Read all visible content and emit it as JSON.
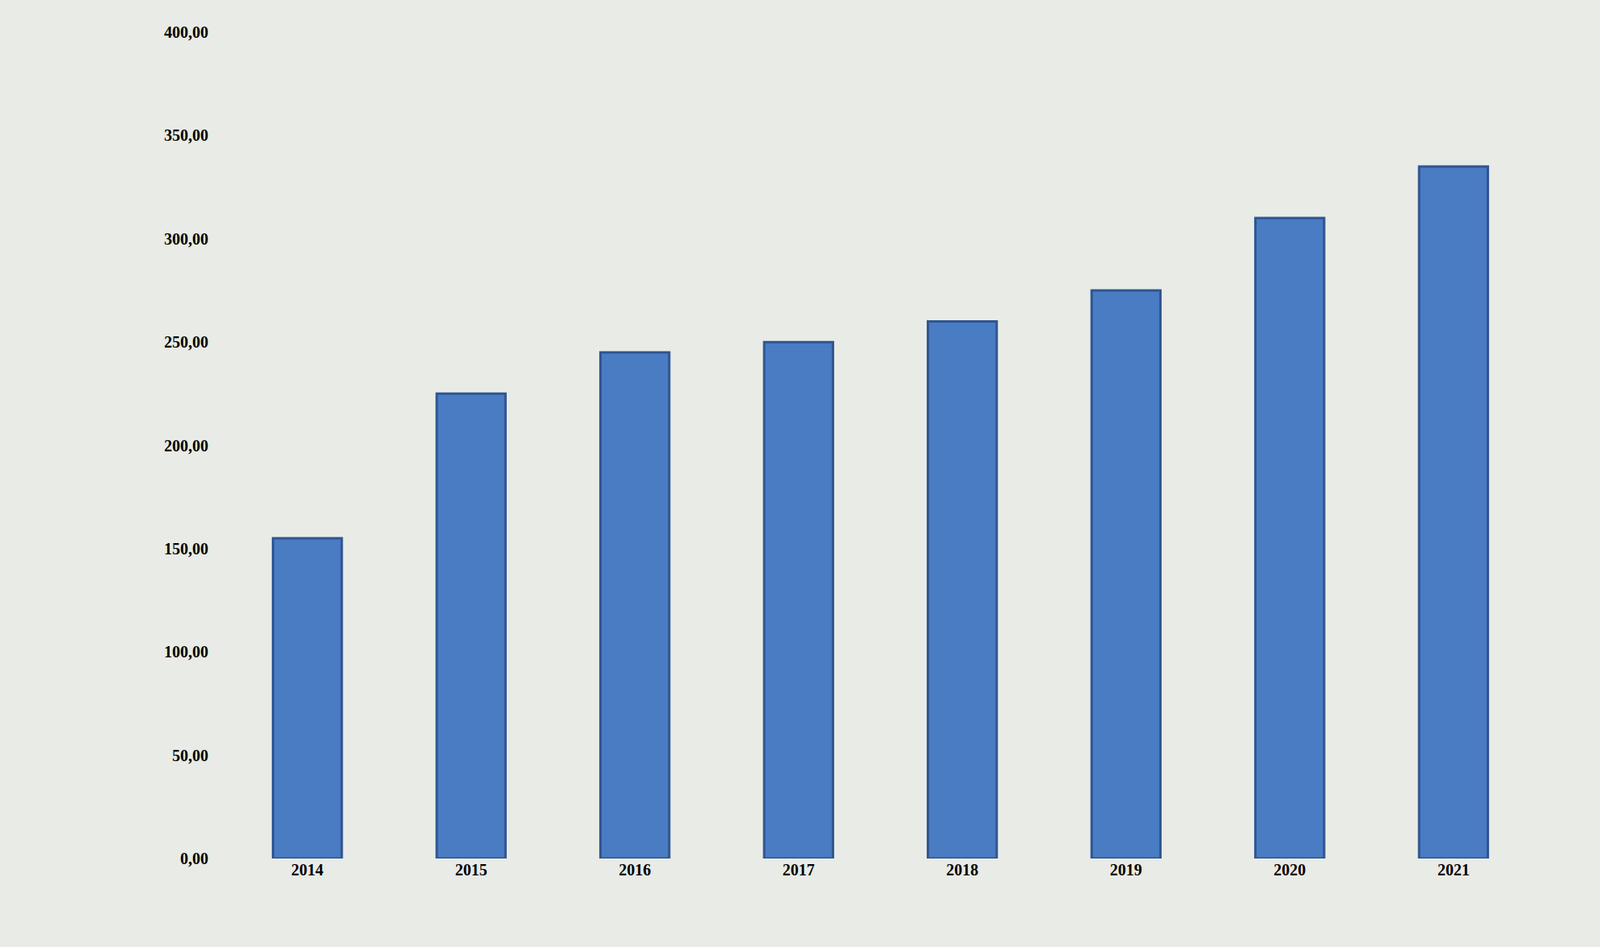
{
  "chart_data": {
    "type": "bar",
    "categories": [
      "2014",
      "2015",
      "2016",
      "2017",
      "2018",
      "2019",
      "2020",
      "2021"
    ],
    "values": [
      155,
      225,
      245,
      250,
      260,
      275,
      310,
      335
    ],
    "color": "#4a7cc4",
    "ylim": [
      0,
      400
    ],
    "yticks": [
      {
        "value": 0,
        "label": "0,00"
      },
      {
        "value": 50,
        "label": "50,00"
      },
      {
        "value": 100,
        "label": "100,00"
      },
      {
        "value": 150,
        "label": "150,00"
      },
      {
        "value": 200,
        "label": "200,00"
      },
      {
        "value": 250,
        "label": "250,00"
      },
      {
        "value": 300,
        "label": "300,00"
      },
      {
        "value": 350,
        "label": "350,00"
      },
      {
        "value": 400,
        "label": "400,00"
      }
    ],
    "grid": false
  }
}
